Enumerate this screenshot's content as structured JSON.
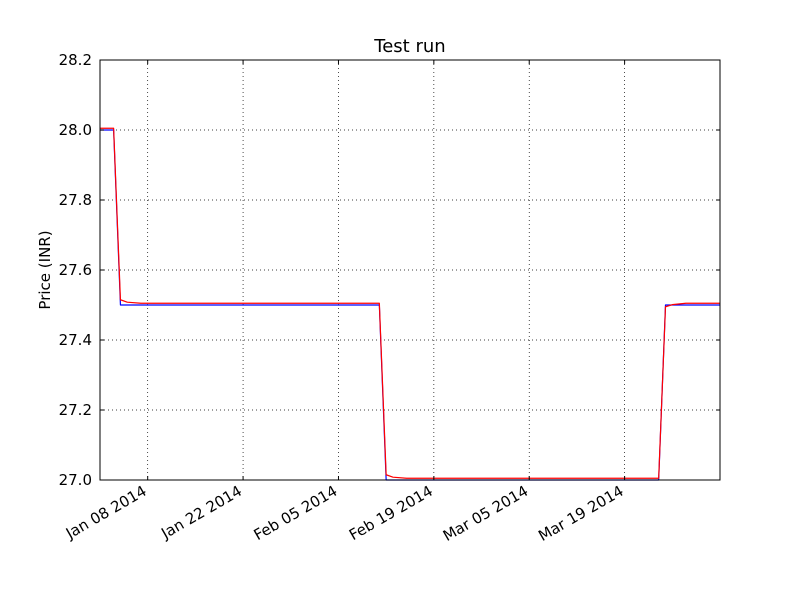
{
  "chart_data": {
    "type": "line",
    "title": "Test run",
    "xlabel": "",
    "ylabel": "Price (INR)",
    "x_axis_type": "date",
    "xlim": [
      "2014-01-01",
      "2014-04-02"
    ],
    "ylim": [
      27.0,
      28.2
    ],
    "y_ticks": [
      27.0,
      27.2,
      27.4,
      27.6,
      27.8,
      28.0,
      28.2
    ],
    "y_tick_labels": [
      "27.0",
      "27.2",
      "27.4",
      "27.6",
      "27.8",
      "28.0",
      "28.2"
    ],
    "x_ticks": [
      "2014-01-08",
      "2014-01-22",
      "2014-02-05",
      "2014-02-19",
      "2014-03-05",
      "2014-03-19"
    ],
    "x_tick_labels": [
      "Jan 08 2014",
      "Jan 22 2014",
      "Feb 05 2014",
      "Feb 19 2014",
      "Mar 05 2014",
      "Mar 19 2014"
    ],
    "grid": true,
    "grid_style": "dotted",
    "legend": "none",
    "series": [
      {
        "color": "#0000ff",
        "x": [
          "2014-01-01",
          "2014-01-03",
          "2014-01-04",
          "2014-02-11",
          "2014-02-12",
          "2014-03-24",
          "2014-03-25",
          "2014-04-02"
        ],
        "y": [
          28.0,
          28.0,
          27.5,
          27.5,
          27.0,
          27.0,
          27.5,
          27.5
        ]
      },
      {
        "color": "#ff0000",
        "x": [
          "2014-01-01",
          "2014-01-03",
          "2014-01-04",
          "2014-01-05",
          "2014-01-07",
          "2014-02-11",
          "2014-02-12",
          "2014-02-13",
          "2014-02-15",
          "2014-03-24",
          "2014-03-25",
          "2014-03-26",
          "2014-03-28",
          "2014-04-02"
        ],
        "y": [
          28.005,
          28.005,
          27.515,
          27.508,
          27.505,
          27.505,
          27.015,
          27.008,
          27.005,
          27.005,
          27.495,
          27.501,
          27.505,
          27.505
        ]
      }
    ]
  }
}
